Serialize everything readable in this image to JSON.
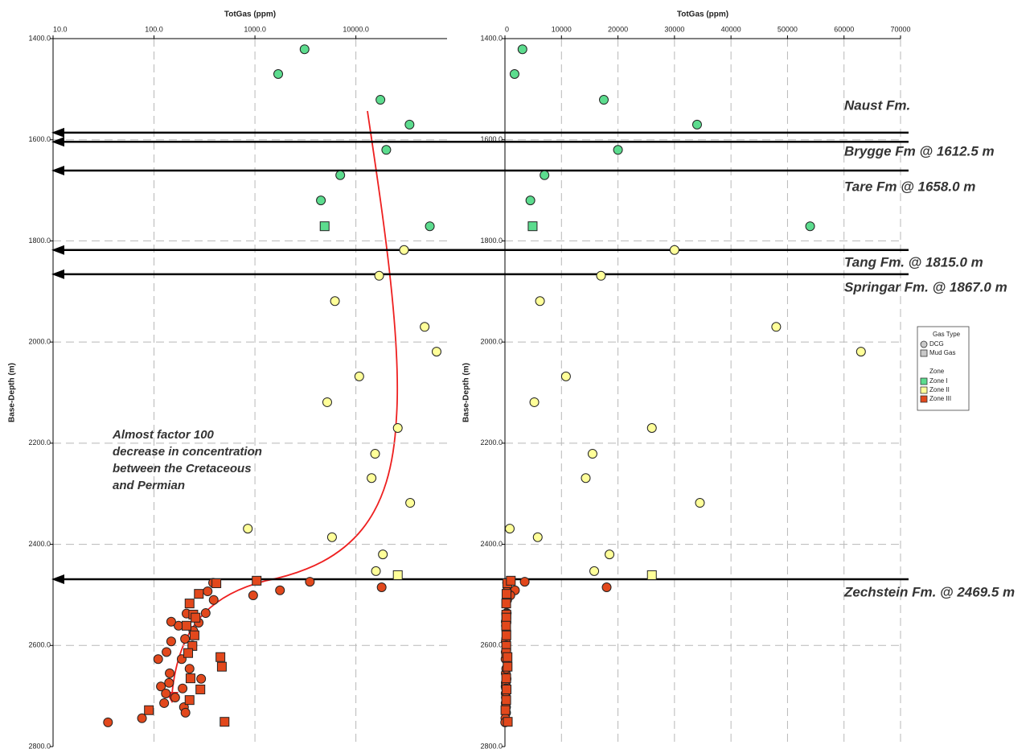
{
  "chart_data": {
    "type": "scatter",
    "panels": [
      {
        "title": "TotGas (ppm)",
        "y_label": "Base-Depth (m)",
        "xscale": "log",
        "xlim": [
          10,
          80000
        ],
        "xticks": [
          {
            "value": 10,
            "label": "10.0"
          },
          {
            "value": 100,
            "label": "100.0"
          },
          {
            "value": 1000,
            "label": "1000.0"
          },
          {
            "value": 10000,
            "label": "10000.0"
          }
        ]
      },
      {
        "title": "TotGas (ppm)",
        "y_label": "Base-Depth (m)",
        "xscale": "linear",
        "xlim": [
          0,
          70000
        ],
        "xticks": [
          0,
          10000,
          20000,
          30000,
          40000,
          50000,
          60000,
          70000
        ]
      }
    ],
    "ylim": [
      1400,
      2800
    ],
    "y_inverted": true,
    "yticks": [
      {
        "value": 1400,
        "label": "1400.0"
      },
      {
        "value": 1600,
        "label": "1600.0"
      },
      {
        "value": 1800,
        "label": "1800.0"
      },
      {
        "value": 2000,
        "label": "2000.0"
      },
      {
        "value": 2200,
        "label": "2200.0"
      },
      {
        "value": 2400,
        "label": "2400.0"
      },
      {
        "value": 2600,
        "label": "2600.0"
      },
      {
        "value": 2800,
        "label": "2800.0"
      }
    ],
    "grid": true,
    "legend": {
      "gas_type_title": "Gas Type",
      "zone_title": "Zone",
      "position": "right"
    },
    "gas_types": [
      {
        "name": "DCG",
        "marker": "circle"
      },
      {
        "name": "Mud Gas",
        "marker": "square"
      }
    ],
    "zones": [
      {
        "name": "Zone I",
        "color": "#5cdc8e",
        "series": [
          {
            "gas_type": "DCG",
            "depth": [
              1421,
              1470,
              1521,
              1570,
              1620,
              1670,
              1720,
              1771
            ],
            "totgas": [
              3100,
              1700,
              17500,
              34000,
              20000,
              7000,
              4500,
              54000
            ]
          },
          {
            "gas_type": "Mud Gas",
            "depth": [
              1771
            ],
            "totgas": [
              4900
            ]
          }
        ]
      },
      {
        "name": "Zone II",
        "color": "#ffff99",
        "series": [
          {
            "gas_type": "DCG",
            "depth": [
              1818,
              1869,
              1919,
              1970,
              2019,
              2068,
              2119,
              2170,
              2221,
              2269,
              2318,
              2369,
              2386,
              2420,
              2453
            ],
            "totgas": [
              30000,
              17000,
              6200,
              48000,
              63000,
              10800,
              5200,
              26000,
              15500,
              14300,
              34500,
              850,
              5800,
              18500,
              15800
            ]
          },
          {
            "gas_type": "Mud Gas",
            "depth": [
              2461
            ],
            "totgas": [
              26000
            ]
          }
        ]
      },
      {
        "name": "Zone III",
        "color": "#e2481c",
        "series": [
          {
            "gas_type": "DCG",
            "depth": [
              2485,
              2474,
              2491,
              2501,
              2476,
              2493,
              2510,
              2536,
              2555,
              2571,
              2537,
              2561,
              2553,
              2587,
              2592,
              2613,
              2600,
              2627,
              2627,
              2655,
              2646,
              2666,
              2674,
              2681,
              2695,
              2685,
              2714,
              2722,
              2733,
              2744,
              2752,
              2703
            ],
            "totgas": [
              18000,
              3500,
              1770,
              960,
              385,
              340,
              390,
              325,
              277,
              245,
              210,
              175,
              148,
              203,
              148,
              133,
              240,
              188,
              110,
              143,
              225,
              293,
              141,
              117,
              131,
              192,
              126,
              198,
              205,
              76,
              35,
              162
            ]
          },
          {
            "gas_type": "Mud Gas",
            "depth": [
              2477,
              2472,
              2498,
              2517,
              2539,
              2545,
              2561,
              2580,
              2601,
              2615,
              2623,
              2642,
              2665,
              2687,
              2708,
              2728,
              2751
            ],
            "totgas": [
              415,
              1040,
              278,
              225,
              245,
              258,
              210,
              252,
              240,
              218,
              455,
              470,
              230,
              288,
              225,
              89,
              500
            ]
          }
        ]
      }
    ],
    "formations": [
      {
        "label": "Naust Fm.",
        "depth": 1586
      },
      {
        "label": "Brygge Fm @ 1612.5 m",
        "depth": 1604
      },
      {
        "label": "Tare Fm @ 1658.0 m",
        "depth": 1661
      },
      {
        "label": "Tang Fm. @ 1815.0 m",
        "depth": 1818
      },
      {
        "label": "Springar Fm. @ 1867.0 m",
        "depth": 1866
      },
      {
        "label": "Zechstein Fm. @ 2469.5 m",
        "depth": 2469
      }
    ],
    "annotation": [
      "Almost factor 100",
      "decrease in concentration",
      "between the Cretaceous",
      "and Permian"
    ]
  }
}
